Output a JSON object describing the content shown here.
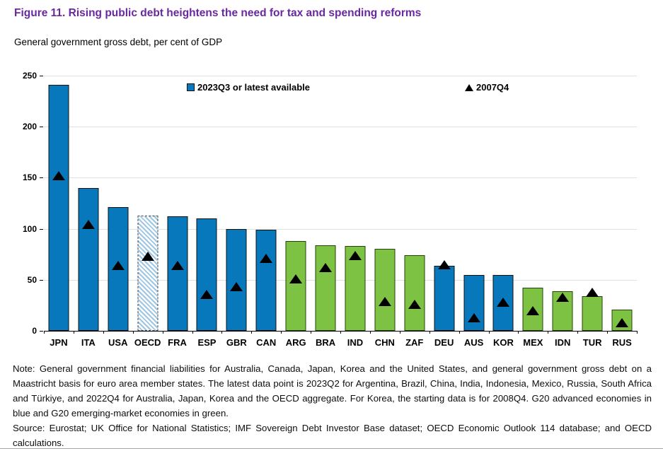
{
  "header": {
    "figure_title": "Figure 11. Rising public debt heightens the need for tax and spending reforms",
    "subtitle": "General government gross debt, per cent of GDP"
  },
  "chart_data": {
    "type": "bar",
    "title": "Figure 11. Rising public debt heightens the need for tax and spending reforms",
    "subtitle": "General government gross debt, per cent of GDP",
    "xlabel": "",
    "ylabel": "",
    "ylim": [
      0,
      250
    ],
    "yticks": [
      0,
      50,
      100,
      150,
      200,
      250
    ],
    "grid": "horizontal",
    "legend_position": "top-inside",
    "legend": [
      {
        "label": "2023Q3 or latest available",
        "marker": "square",
        "color": "#0878BC"
      },
      {
        "label": "2007Q4",
        "marker": "triangle",
        "color": "#000000"
      }
    ],
    "categories": [
      "JPN",
      "ITA",
      "USA",
      "OECD",
      "FRA",
      "ESP",
      "GBR",
      "CAN",
      "ARG",
      "BRA",
      "IND",
      "CHN",
      "ZAF",
      "DEU",
      "AUS",
      "KOR",
      "MEX",
      "IDN",
      "TUR",
      "RUS"
    ],
    "series": [
      {
        "name": "2023Q3 or latest available",
        "type": "bar",
        "values": [
          241,
          140,
          121,
          113,
          112,
          110,
          100,
          99,
          88,
          84,
          83,
          80,
          74,
          64,
          55,
          55,
          42,
          39,
          34,
          21
        ]
      },
      {
        "name": "2007Q4",
        "type": "triangle-marker",
        "values": [
          152,
          104,
          64,
          73,
          64,
          36,
          43,
          71,
          51,
          62,
          74,
          29,
          26,
          65,
          13,
          28,
          20,
          33,
          38,
          8
        ]
      }
    ],
    "bar_styles": [
      "blue",
      "blue",
      "blue",
      "hatched",
      "blue",
      "blue",
      "blue",
      "blue",
      "green",
      "green",
      "green",
      "green",
      "green",
      "blue",
      "blue",
      "blue",
      "green",
      "green",
      "green",
      "green"
    ],
    "colors": {
      "advanced_blue": "#0878BC",
      "emerging_green": "#7DC242",
      "hatch_light_blue": "#9CC6E3",
      "marker_black": "#000000",
      "gridline_gray": "#DFDFDF",
      "title_purple": "#6A28A0"
    }
  },
  "footer": {
    "note": "Note: General government financial liabilities for Australia, Canada, Japan, Korea and the United States, and general government gross debt on a Maastricht basis for euro area member states. The latest data point is 2023Q2 for Argentina, Brazil, China, India, Indonesia, Mexico, Russia, South Africa and Türkiye, and 2022Q4 for Australia, Japan, Korea and the OECD aggregate. For Korea, the starting data is for 2008Q4. G20 advanced economies in blue and G20 emerging-market economies in green.",
    "source": "Source: Eurostat; UK Office for National Statistics; IMF Sovereign Debt Investor Base dataset; OECD Economic Outlook 114 database; and OECD calculations."
  }
}
